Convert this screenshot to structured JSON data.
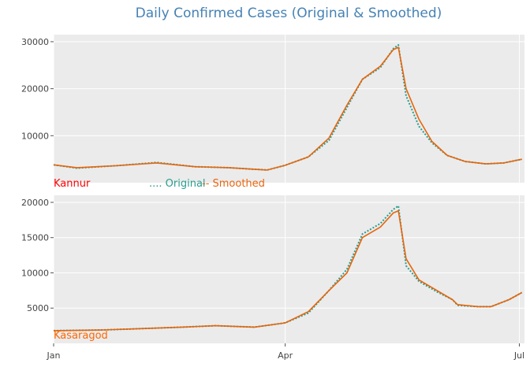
{
  "chart_data": {
    "type": "line",
    "title": "Daily Confirmed Cases (Original & Smoothed)",
    "legend": {
      "placement": "between-panels",
      "entries": [
        {
          "marker": "....",
          "label": "Original",
          "color": "#2a9d8f"
        },
        {
          "marker": "--",
          "label": "Smoothed",
          "color": "#e8650c"
        }
      ]
    },
    "x_ticks": [
      "Jan",
      "Apr",
      "Jul"
    ],
    "x_range": [
      "2021-01-01",
      "2021-07-03"
    ],
    "panels": [
      {
        "name": "Kannur",
        "name_color": "#ff0000",
        "ylim": [
          0,
          31500
        ],
        "yticks": [
          10000,
          20000,
          30000
        ],
        "tick_labels": [
          "10000",
          "20000",
          "30000"
        ],
        "series": [
          {
            "name": "Original",
            "color": "#2a9d8f",
            "x": [
              "2021-01-01",
              "2021-01-10",
              "2021-01-25",
              "2021-02-10",
              "2021-02-25",
              "2021-03-10",
              "2021-03-25",
              "2021-04-01",
              "2021-04-10",
              "2021-04-18",
              "2021-04-25",
              "2021-05-01",
              "2021-05-08",
              "2021-05-13",
              "2021-05-15",
              "2021-05-18",
              "2021-05-23",
              "2021-05-28",
              "2021-06-03",
              "2021-06-10",
              "2021-06-18",
              "2021-06-25",
              "2021-07-02"
            ],
            "y": [
              3800,
              3100,
              3600,
              4300,
              3400,
              3200,
              2700,
              3700,
              5500,
              9000,
              16000,
              22000,
              24500,
              28500,
              29300,
              18500,
              12000,
              8500,
              5800,
              4500,
              4000,
              4200,
              5000
            ]
          },
          {
            "name": "Smoothed",
            "color": "#e8650c",
            "x": [
              "2021-01-01",
              "2021-01-10",
              "2021-01-25",
              "2021-02-10",
              "2021-02-25",
              "2021-03-10",
              "2021-03-25",
              "2021-04-01",
              "2021-04-10",
              "2021-04-18",
              "2021-04-25",
              "2021-05-01",
              "2021-05-08",
              "2021-05-13",
              "2021-05-15",
              "2021-05-18",
              "2021-05-23",
              "2021-05-28",
              "2021-06-03",
              "2021-06-10",
              "2021-06-18",
              "2021-06-25",
              "2021-07-02"
            ],
            "y": [
              3800,
              3200,
              3600,
              4200,
              3400,
              3200,
              2700,
              3700,
              5500,
              9500,
              16500,
              22000,
              24800,
              28300,
              28800,
              20000,
              13500,
              8800,
              5800,
              4500,
              4000,
              4200,
              5000
            ]
          }
        ]
      },
      {
        "name": "Kasaragod",
        "name_color": "#ff6600",
        "ylim": [
          0,
          21000
        ],
        "yticks": [
          5000,
          10000,
          15000,
          20000
        ],
        "tick_labels": [
          "5000",
          "10000",
          "15000",
          "20000"
        ],
        "series": [
          {
            "name": "Original",
            "color": "#2a9d8f",
            "x": [
              "2021-01-01",
              "2021-01-20",
              "2021-02-05",
              "2021-02-20",
              "2021-03-05",
              "2021-03-20",
              "2021-04-01",
              "2021-04-10",
              "2021-04-18",
              "2021-04-25",
              "2021-05-01",
              "2021-05-08",
              "2021-05-13",
              "2021-05-15",
              "2021-05-18",
              "2021-05-23",
              "2021-05-30",
              "2021-06-05",
              "2021-06-07",
              "2021-06-15",
              "2021-06-20",
              "2021-06-27",
              "2021-07-02"
            ],
            "y": [
              1800,
              1900,
              2100,
              2300,
              2500,
              2300,
              2900,
              4300,
              7500,
              10500,
              15500,
              17000,
              19000,
              19500,
              11000,
              8800,
              7300,
              6200,
              5400,
              5200,
              5200,
              6200,
              7200
            ]
          },
          {
            "name": "Smoothed",
            "color": "#e8650c",
            "x": [
              "2021-01-01",
              "2021-01-20",
              "2021-02-05",
              "2021-02-20",
              "2021-03-05",
              "2021-03-20",
              "2021-04-01",
              "2021-04-10",
              "2021-04-18",
              "2021-04-25",
              "2021-05-01",
              "2021-05-08",
              "2021-05-13",
              "2021-05-15",
              "2021-05-18",
              "2021-05-23",
              "2021-05-30",
              "2021-06-05",
              "2021-06-07",
              "2021-06-15",
              "2021-06-20",
              "2021-06-27",
              "2021-07-02"
            ],
            "y": [
              1800,
              1900,
              2100,
              2300,
              2500,
              2300,
              2900,
              4500,
              7500,
              10000,
              15000,
              16500,
              18500,
              18800,
              12000,
              9000,
              7500,
              6200,
              5500,
              5200,
              5200,
              6200,
              7200
            ]
          }
        ]
      }
    ]
  }
}
